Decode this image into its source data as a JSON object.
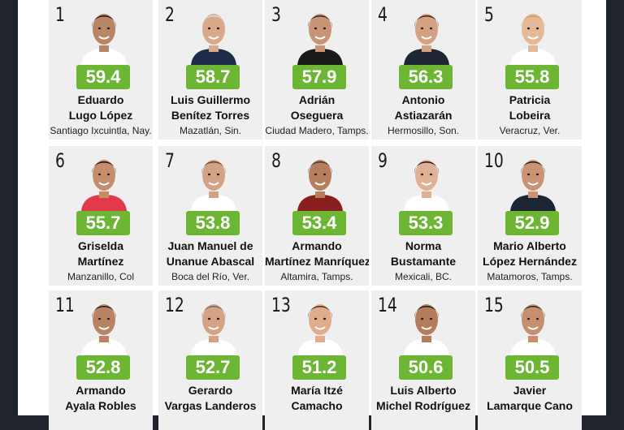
{
  "candidates": [
    {
      "rank": "1",
      "score": "59.4",
      "name1": "Eduardo",
      "name2": "Lugo López",
      "city": "Santiago Ixcuintla, Nay.",
      "skin": "#b88664",
      "hair": "#151515",
      "shirt": "#ffffff"
    },
    {
      "rank": "2",
      "score": "58.7",
      "name1": "Luis Guillermo",
      "name2": "Benítez Torres",
      "city": "Mazatlán, Sin.",
      "skin": "#d8a98a",
      "hair": "#dcdcdc",
      "shirt": "#1d2c4a"
    },
    {
      "rank": "3",
      "score": "57.9",
      "name1": "Adrián",
      "name2": "Oseguera",
      "city": "Ciudad Madero, Tamps.",
      "skin": "#c79476",
      "hair": "#2a2a2a",
      "shirt": "#1a1a1a"
    },
    {
      "rank": "4",
      "score": "56.3",
      "name1": "Antonio",
      "name2": "Astiazarán",
      "city": "Hermosillo, Son.",
      "skin": "#d4a182",
      "hair": "#2a2522",
      "shirt": "#1e2533"
    },
    {
      "rank": "5",
      "score": "55.8",
      "name1": "Patricia",
      "name2": "Lobeira",
      "city": "Veracruz, Ver.",
      "skin": "#e5b898",
      "hair": "#c9a25e",
      "shirt": "#ffffff"
    },
    {
      "rank": "6",
      "score": "55.7",
      "name1": "Griselda",
      "name2": "Martínez",
      "city": "Manzanillo, Col",
      "skin": "#c58d6c",
      "hair": "#111111",
      "shirt": "#e23a4a"
    },
    {
      "rank": "7",
      "score": "53.8",
      "name1": "Juan Manuel de",
      "name2": "Unanue Abascal",
      "city": "Boca del Río, Ver.",
      "skin": "#d2a285",
      "hair": "#5a4330",
      "shirt": "#ffffff"
    },
    {
      "rank": "8",
      "score": "53.4",
      "name1": "Armando",
      "name2": "Martínez Manríquez",
      "city": "Altamira, Tamps.",
      "skin": "#b77e5e",
      "hair": "#3a3a3a",
      "shirt": "#8a1f1f"
    },
    {
      "rank": "9",
      "score": "53.3",
      "name1": "Norma",
      "name2": "Bustamante",
      "city": "Mexicali, BC.",
      "skin": "#e0b194",
      "hair": "#111111",
      "shirt": "#ffffff"
    },
    {
      "rank": "10",
      "score": "52.9",
      "name1": "Mario Alberto",
      "name2": "López Hernández",
      "city": "Matamoros, Tamps.",
      "skin": "#c99374",
      "hair": "#1a1a1a",
      "shirt": "#1d2434"
    },
    {
      "rank": "11",
      "score": "52.8",
      "name1": "Armando",
      "name2": "Ayala Robles",
      "city": "",
      "skin": "#b98465",
      "hair": "#1c1c1c",
      "shirt": "#ffffff"
    },
    {
      "rank": "12",
      "score": "52.7",
      "name1": "Gerardo",
      "name2": "Vargas Landeros",
      "city": "",
      "skin": "#d3a384",
      "hair": "#6a6a6a",
      "shirt": "#ffffff"
    },
    {
      "rank": "13",
      "score": "51.2",
      "name1": "María Itzé",
      "name2": "Camacho",
      "city": "",
      "skin": "#e0ad8c",
      "hair": "#4a2c1c",
      "shirt": "#ffffff"
    },
    {
      "rank": "14",
      "score": "50.6",
      "name1": "Luis Alberto",
      "name2": "Michel Rodríguez",
      "city": "",
      "skin": "#b47c5a",
      "hair": "#1a1a1a",
      "shirt": "#ffffff"
    },
    {
      "rank": "15",
      "score": "50.5",
      "name1": "Javier",
      "name2": "Lamarque Cano",
      "city": "",
      "skin": "#c69070",
      "hair": "#2a2a2a",
      "shirt": "#ffffff"
    }
  ]
}
